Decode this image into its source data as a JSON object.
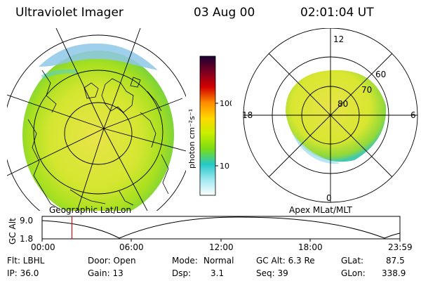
{
  "header": {
    "title": "Ultraviolet Imager",
    "date": "03 Aug 00",
    "time": "02:01:04 UT"
  },
  "left_panel": {
    "caption": "Geographic Lat/Lon"
  },
  "right_panel": {
    "caption": "Apex MLat/MLT",
    "mlt_labels": {
      "top": "12",
      "left": "18",
      "right": "6",
      "bottom": "0"
    },
    "lat_labels": [
      "60",
      "70",
      "80"
    ]
  },
  "colorbar": {
    "label": "photon cm⁻²s⁻¹",
    "ticks": [
      "100",
      "10"
    ],
    "colors": [
      "#1a0030",
      "#7a0022",
      "#d40000",
      "#ff8a00",
      "#ffd800",
      "#c8ee00",
      "#7adc14",
      "#26c8c8",
      "#a0e8f0",
      "#ffffff"
    ]
  },
  "timeline": {
    "ylabel": "GC Alt",
    "ymax": "9.0",
    "ymin": "1.8",
    "xticks": [
      "00:00",
      "06:00",
      "12:00",
      "18:00",
      "23:59"
    ],
    "current_time_fraction": 0.0833
  },
  "info": {
    "row1": {
      "flt": "Flt: LBHL",
      "door": "Door: Open",
      "mode_label": "Mode:",
      "mode_value": "Normal",
      "gcalt": "GC Alt: 6.3 Re",
      "glat_label": "GLat:",
      "glat_value": "87.5"
    },
    "row2": {
      "ip": "IP: 36.0",
      "gain": "Gain: 13",
      "dsp_label": "Dsp:",
      "dsp_value": "3.1",
      "seq": "Seq: 39",
      "glon_label": "GLon:",
      "glon_value": "338.9"
    }
  }
}
